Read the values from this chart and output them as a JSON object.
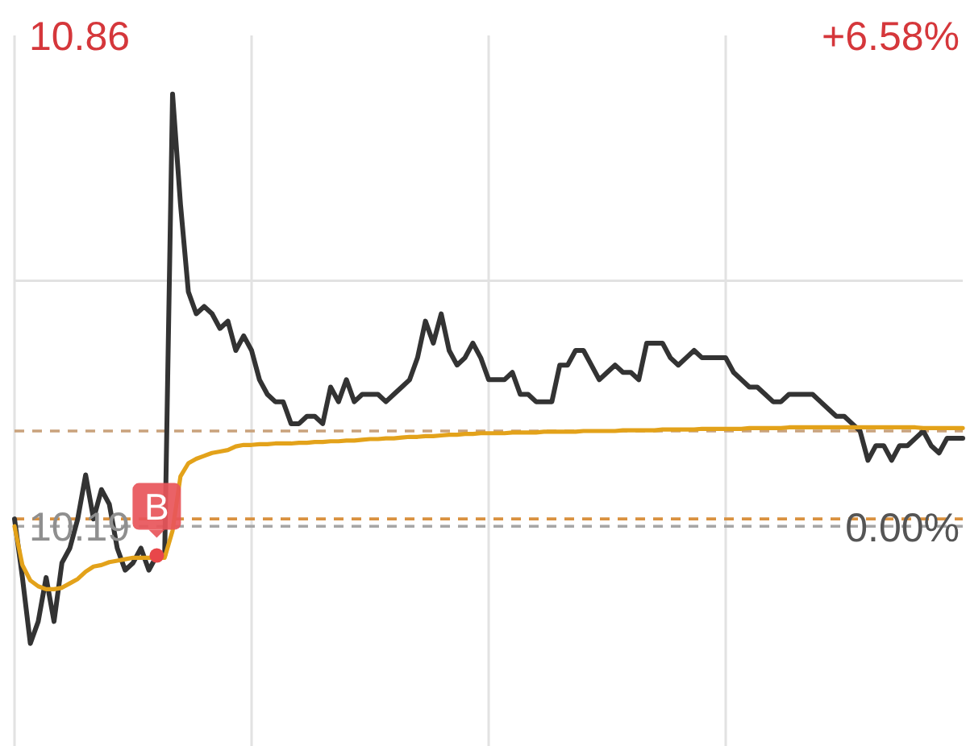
{
  "chart_data": {
    "type": "line",
    "categories": [
      null,
      null,
      null,
      null,
      null,
      null,
      null,
      null,
      null,
      null,
      null,
      null,
      null,
      null,
      null,
      null,
      null,
      null,
      null,
      null,
      null,
      null,
      null,
      null,
      null,
      null,
      null,
      null,
      null,
      null,
      null,
      null,
      null,
      null,
      null,
      null,
      null,
      null,
      null,
      null,
      null,
      null,
      null,
      null,
      null,
      null,
      null,
      null,
      null,
      null,
      null,
      null,
      null,
      null,
      null,
      null,
      null,
      null,
      null,
      null,
      null,
      null,
      null,
      null,
      null,
      null,
      null,
      null,
      null,
      null,
      null,
      null,
      null,
      null,
      null,
      null,
      null,
      null,
      null,
      null,
      null,
      null,
      null,
      null,
      null,
      null,
      null,
      null,
      null,
      null,
      null,
      null,
      null,
      null,
      null,
      null,
      null,
      null,
      null,
      null,
      null,
      null,
      null,
      null,
      null,
      null,
      null,
      null,
      null,
      null,
      null,
      null,
      null,
      null,
      null,
      null,
      null,
      null,
      null,
      null,
      null
    ],
    "series": [
      {
        "color": "#333333",
        "values": [
          10.2,
          10.12,
          10.03,
          10.06,
          10.12,
          10.06,
          10.14,
          10.16,
          10.2,
          10.26,
          10.2,
          10.24,
          10.22,
          10.16,
          10.13,
          10.14,
          10.16,
          10.13,
          10.15,
          10.15,
          10.78,
          10.63,
          10.51,
          10.48,
          10.49,
          10.48,
          10.46,
          10.47,
          10.43,
          10.45,
          10.43,
          10.39,
          10.37,
          10.36,
          10.36,
          10.33,
          10.33,
          10.34,
          10.34,
          10.33,
          10.38,
          10.36,
          10.39,
          10.36,
          10.37,
          10.37,
          10.37,
          10.36,
          10.37,
          10.38,
          10.39,
          10.42,
          10.47,
          10.44,
          10.48,
          10.43,
          10.41,
          10.42,
          10.44,
          10.42,
          10.39,
          10.39,
          10.39,
          10.4,
          10.37,
          10.37,
          10.36,
          10.36,
          10.36,
          10.41,
          10.41,
          10.43,
          10.43,
          10.41,
          10.39,
          10.4,
          10.41,
          10.4,
          10.4,
          10.39,
          10.44,
          10.44,
          10.44,
          10.42,
          10.41,
          10.42,
          10.43,
          10.42,
          10.42,
          10.42,
          10.42,
          10.4,
          10.39,
          10.38,
          10.38,
          10.37,
          10.36,
          10.36,
          10.37,
          10.37,
          10.37,
          10.37,
          10.36,
          10.35,
          10.34,
          10.34,
          10.33,
          10.32,
          10.28,
          10.3,
          10.3,
          10.28,
          10.3,
          10.3,
          10.31,
          10.32,
          10.3,
          10.29,
          10.31,
          10.31,
          10.31
        ]
      },
      {
        "color": "#e3a21a",
        "values": [
          10.19,
          10.137,
          10.116,
          10.108,
          10.104,
          10.104,
          10.106,
          10.112,
          10.118,
          10.128,
          10.135,
          10.137,
          10.141,
          10.143,
          10.145,
          10.147,
          10.147,
          10.147,
          10.147,
          10.147,
          10.184,
          10.258,
          10.276,
          10.282,
          10.286,
          10.29,
          10.292,
          10.294,
          10.299,
          10.301,
          10.301,
          10.302,
          10.302,
          10.303,
          10.303,
          10.303,
          10.304,
          10.304,
          10.305,
          10.305,
          10.306,
          10.306,
          10.307,
          10.307,
          10.308,
          10.309,
          10.309,
          10.31,
          10.31,
          10.311,
          10.312,
          10.312,
          10.313,
          10.313,
          10.314,
          10.315,
          10.315,
          10.316,
          10.316,
          10.317,
          10.317,
          10.317,
          10.317,
          10.318,
          10.318,
          10.318,
          10.318,
          10.319,
          10.319,
          10.319,
          10.319,
          10.319,
          10.32,
          10.32,
          10.32,
          10.32,
          10.32,
          10.321,
          10.321,
          10.321,
          10.321,
          10.321,
          10.322,
          10.322,
          10.322,
          10.322,
          10.322,
          10.323,
          10.323,
          10.323,
          10.323,
          10.323,
          10.323,
          10.324,
          10.324,
          10.324,
          10.324,
          10.324,
          10.325,
          10.325,
          10.325,
          10.325,
          10.325,
          10.325,
          10.325,
          10.325,
          10.325,
          10.325,
          10.325,
          10.325,
          10.325,
          10.325,
          10.325,
          10.325,
          10.325,
          10.324,
          10.324,
          10.324,
          10.324,
          10.324,
          10.324
        ]
      },
      {
        "type": "scatter",
        "color": "#e8474a",
        "marker": "circle",
        "values": [
          null,
          null,
          null,
          null,
          null,
          null,
          null,
          null,
          null,
          null,
          null,
          null,
          null,
          null,
          null,
          null,
          null,
          null,
          10.15,
          null,
          null,
          null,
          null,
          null,
          null,
          null,
          null,
          null,
          null,
          null,
          null,
          null,
          null,
          null,
          null,
          null,
          null,
          null,
          null,
          null,
          null,
          null,
          null,
          null,
          null,
          null,
          null,
          null,
          null,
          null,
          null,
          null,
          null,
          null,
          null,
          null,
          null,
          null,
          null,
          null,
          null,
          null,
          null,
          null,
          null,
          null,
          null,
          null,
          null,
          null,
          null,
          null,
          null,
          null,
          null,
          null,
          null,
          null,
          null,
          null,
          null,
          null,
          null,
          null,
          null,
          null,
          null,
          null,
          null,
          null,
          null,
          null,
          null,
          null,
          null,
          null,
          null,
          null,
          null,
          null,
          null,
          null,
          null,
          null,
          null,
          null,
          null,
          null,
          null,
          null,
          null,
          null,
          null,
          null,
          null,
          null,
          null,
          null,
          null,
          null,
          null
        ]
      }
    ],
    "ylim": [
      9.89,
      10.86
    ],
    "yticks": [
      10.86,
      {
        "value": 10.525,
        "label": null
      },
      10.19
    ],
    "y2lim": [
      -2.94,
      6.58
    ],
    "y2ticks": [
      {
        "value": 6.58,
        "label": "+6.58%"
      },
      {
        "value": 0,
        "label": "0.00%"
      }
    ],
    "grid": true,
    "ref_lines": [
      {
        "axis": "y",
        "value": 10.32,
        "color": "#c9a27c",
        "line_style": "dashed"
      },
      {
        "axis": "y",
        "value": 10.2,
        "color": "#d9913f",
        "line_style": "dashed"
      },
      {
        "axis": "y",
        "value": 10.19,
        "color": "#a6a6a6",
        "line_style": "dashed"
      }
    ],
    "annotations": [
      {
        "text": "B",
        "y": 10.15
      }
    ]
  }
}
